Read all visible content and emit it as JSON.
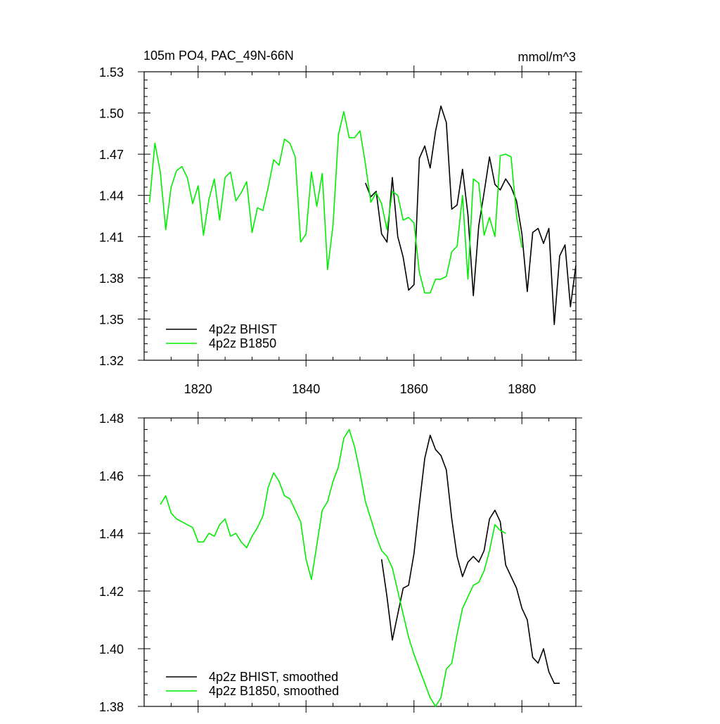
{
  "chart_data": [
    {
      "type": "line",
      "title": "105m PO4, PAC_49N-66N",
      "units": "mmol/m^3",
      "xlim": [
        1810,
        1890
      ],
      "ylim": [
        1.32,
        1.53
      ],
      "x_ticks": [
        1820,
        1840,
        1860,
        1880
      ],
      "x_tick_labels": [
        "1820",
        "1840",
        "1860",
        "1880"
      ],
      "y_ticks": [
        1.32,
        1.35,
        1.38,
        1.41,
        1.44,
        1.47,
        1.5,
        1.53
      ],
      "y_tick_labels": [
        "1.32",
        "1.35",
        "1.38",
        "1.41",
        "1.44",
        "1.47",
        "1.50",
        "1.53"
      ],
      "legend_position": "bottom-left",
      "series": [
        {
          "name": "4p2z BHIST",
          "color": "#000000",
          "x": [
            1851,
            1852,
            1853,
            1854,
            1855,
            1856,
            1857,
            1858,
            1859,
            1860,
            1861,
            1862,
            1863,
            1864,
            1865,
            1866,
            1867,
            1868,
            1869,
            1870,
            1871,
            1872,
            1873,
            1874,
            1875,
            1876,
            1877,
            1878,
            1879,
            1880,
            1881,
            1882,
            1883,
            1884,
            1885,
            1886,
            1887,
            1888,
            1889,
            1890
          ],
          "y": [
            1.449,
            1.439,
            1.443,
            1.412,
            1.406,
            1.453,
            1.41,
            1.395,
            1.371,
            1.375,
            1.467,
            1.476,
            1.46,
            1.487,
            1.505,
            1.493,
            1.43,
            1.433,
            1.459,
            1.426,
            1.367,
            1.418,
            1.442,
            1.468,
            1.448,
            1.444,
            1.452,
            1.446,
            1.436,
            1.412,
            1.37,
            1.413,
            1.416,
            1.405,
            1.416,
            1.346,
            1.396,
            1.404,
            1.359,
            1.389
          ]
        },
        {
          "name": "4p2z B1850",
          "color": "#00ee00",
          "x": [
            1811,
            1812,
            1813,
            1814,
            1815,
            1816,
            1817,
            1818,
            1819,
            1820,
            1821,
            1822,
            1823,
            1824,
            1825,
            1826,
            1827,
            1828,
            1829,
            1830,
            1831,
            1832,
            1833,
            1834,
            1835,
            1836,
            1837,
            1838,
            1839,
            1840,
            1841,
            1842,
            1843,
            1844,
            1845,
            1846,
            1847,
            1848,
            1849,
            1850,
            1851,
            1852,
            1853,
            1854,
            1855,
            1856,
            1857,
            1858,
            1859,
            1860,
            1861,
            1862,
            1863,
            1864,
            1865,
            1866,
            1867,
            1868,
            1869,
            1870,
            1871,
            1872,
            1873,
            1874,
            1875,
            1876,
            1877,
            1878,
            1879,
            1880
          ],
          "y": [
            1.435,
            1.478,
            1.457,
            1.415,
            1.446,
            1.458,
            1.461,
            1.453,
            1.434,
            1.447,
            1.411,
            1.437,
            1.452,
            1.422,
            1.453,
            1.457,
            1.436,
            1.442,
            1.45,
            1.413,
            1.431,
            1.429,
            1.446,
            1.466,
            1.462,
            1.481,
            1.478,
            1.468,
            1.406,
            1.412,
            1.457,
            1.432,
            1.456,
            1.386,
            1.418,
            1.484,
            1.501,
            1.482,
            1.482,
            1.487,
            1.463,
            1.435,
            1.442,
            1.434,
            1.415,
            1.443,
            1.44,
            1.422,
            1.424,
            1.42,
            1.384,
            1.369,
            1.369,
            1.379,
            1.379,
            1.381,
            1.399,
            1.403,
            1.44,
            1.379,
            1.452,
            1.449,
            1.411,
            1.424,
            1.41,
            1.469,
            1.47,
            1.468,
            1.425,
            1.402
          ]
        }
      ]
    },
    {
      "type": "line",
      "xlim": [
        1810,
        1890
      ],
      "ylim": [
        1.38,
        1.48
      ],
      "x_ticks": [
        1820,
        1840,
        1860,
        1880
      ],
      "y_ticks": [
        1.38,
        1.4,
        1.42,
        1.44,
        1.46,
        1.48
      ],
      "y_tick_labels": [
        "1.38",
        "1.40",
        "1.42",
        "1.44",
        "1.46",
        "1.48"
      ],
      "legend_position": "bottom-left",
      "series": [
        {
          "name": "4p2z BHIST, smoothed",
          "color": "#000000",
          "x": [
            1854,
            1855,
            1856,
            1857,
            1858,
            1859,
            1860,
            1861,
            1862,
            1863,
            1864,
            1865,
            1866,
            1867,
            1868,
            1869,
            1870,
            1871,
            1872,
            1873,
            1874,
            1875,
            1876,
            1877,
            1878,
            1879,
            1880,
            1881,
            1882,
            1883,
            1884,
            1885,
            1886,
            1887
          ],
          "y": [
            1.431,
            1.418,
            1.403,
            1.412,
            1.421,
            1.422,
            1.433,
            1.45,
            1.466,
            1.474,
            1.469,
            1.467,
            1.462,
            1.445,
            1.432,
            1.425,
            1.43,
            1.432,
            1.43,
            1.434,
            1.445,
            1.448,
            1.444,
            1.429,
            1.425,
            1.421,
            1.414,
            1.41,
            1.397,
            1.395,
            1.4,
            1.392,
            1.388,
            1.388
          ]
        },
        {
          "name": "4p2z B1850, smoothed",
          "color": "#00ee00",
          "x": [
            1813,
            1814,
            1815,
            1816,
            1817,
            1818,
            1819,
            1820,
            1821,
            1822,
            1823,
            1824,
            1825,
            1826,
            1827,
            1828,
            1829,
            1830,
            1831,
            1832,
            1833,
            1834,
            1835,
            1836,
            1837,
            1838,
            1839,
            1840,
            1841,
            1842,
            1843,
            1844,
            1845,
            1846,
            1847,
            1848,
            1849,
            1850,
            1851,
            1852,
            1853,
            1854,
            1855,
            1856,
            1857,
            1858,
            1859,
            1860,
            1861,
            1862,
            1863,
            1864,
            1865,
            1866,
            1867,
            1868,
            1869,
            1870,
            1871,
            1872,
            1873,
            1874,
            1875,
            1876,
            1877
          ],
          "y": [
            1.45,
            1.453,
            1.447,
            1.445,
            1.444,
            1.443,
            1.442,
            1.437,
            1.437,
            1.44,
            1.439,
            1.443,
            1.445,
            1.439,
            1.44,
            1.437,
            1.435,
            1.439,
            1.442,
            1.446,
            1.456,
            1.461,
            1.458,
            1.453,
            1.452,
            1.448,
            1.444,
            1.431,
            1.424,
            1.436,
            1.448,
            1.451,
            1.458,
            1.463,
            1.473,
            1.476,
            1.47,
            1.461,
            1.451,
            1.445,
            1.439,
            1.434,
            1.432,
            1.428,
            1.42,
            1.412,
            1.404,
            1.398,
            1.393,
            1.388,
            1.383,
            1.38,
            1.383,
            1.393,
            1.395,
            1.405,
            1.414,
            1.418,
            1.422,
            1.423,
            1.427,
            1.434,
            1.443,
            1.441,
            1.44
          ]
        }
      ]
    }
  ]
}
